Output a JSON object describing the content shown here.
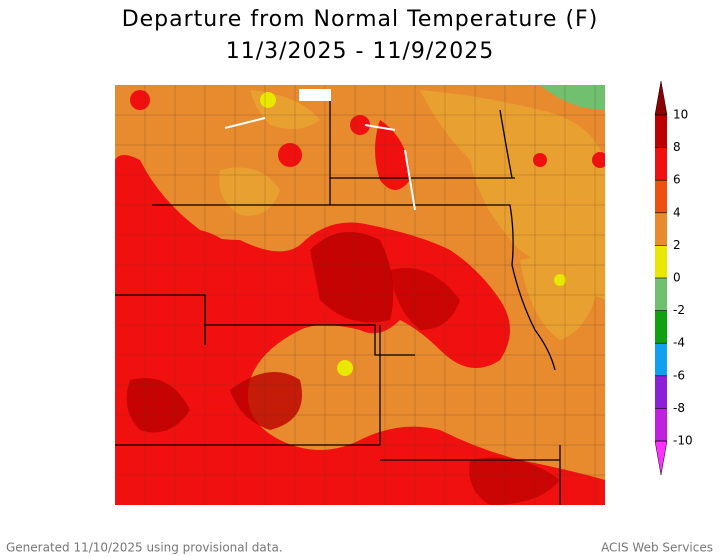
{
  "title": "Departure from Normal Temperature (F)",
  "subtitle": "11/3/2025 - 11/9/2025",
  "legend": {
    "ticks": [
      10,
      8,
      6,
      4,
      2,
      0,
      -2,
      -4,
      -6,
      -8,
      -10
    ],
    "colors": [
      "#8b0000",
      "#bb0000",
      "#f01010",
      "#ee5010",
      "#e88a2e",
      "#e8e800",
      "#70c070",
      "#10a010",
      "#10a0f0",
      "#8a20d8",
      "#c020e0",
      "#ff30ff"
    ]
  },
  "footer": {
    "left": "Generated 11/10/2025 using provisional data.",
    "right": "ACIS Web Services"
  }
}
